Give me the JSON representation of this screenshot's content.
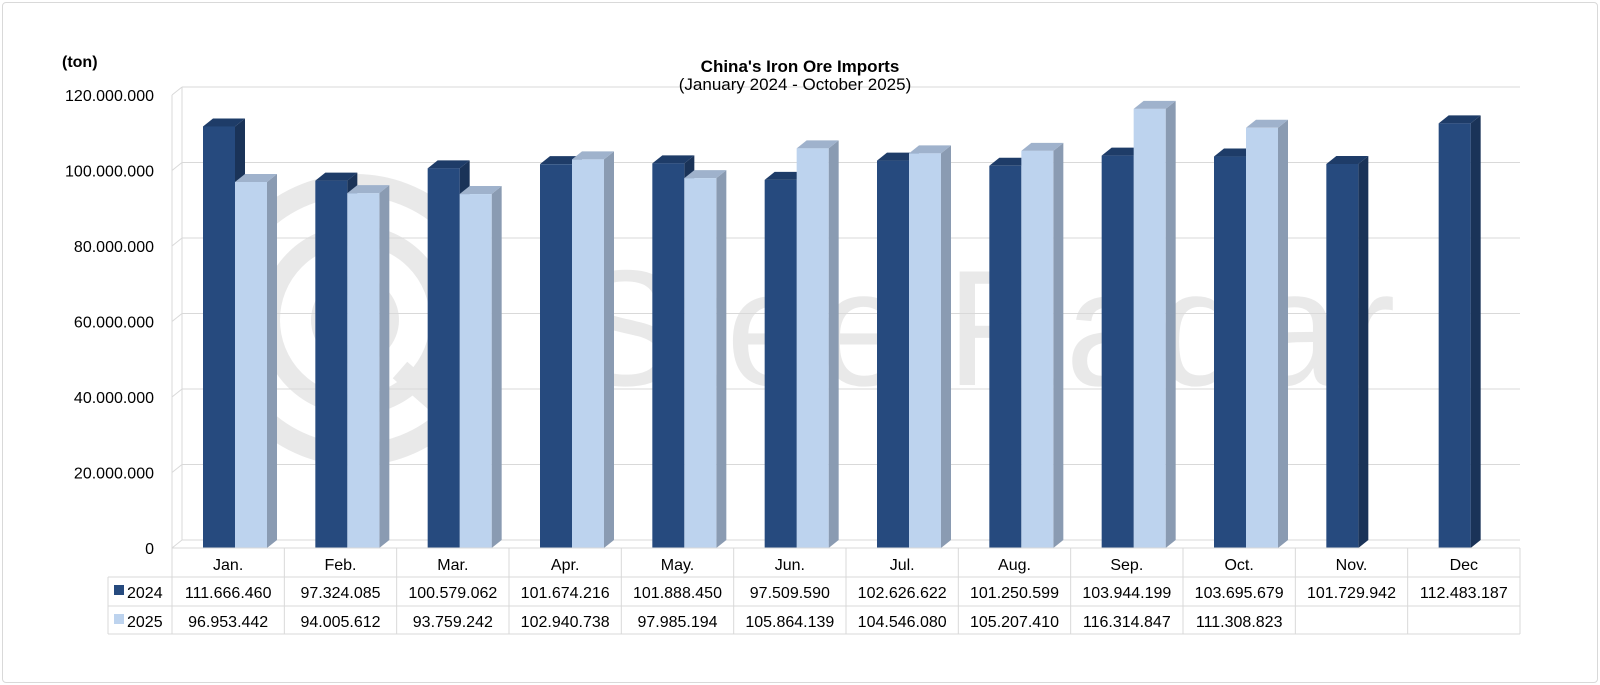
{
  "chart_data": {
    "type": "bar",
    "title": "China's Iron Ore Imports",
    "subtitle": "(January 2024 - October 2025)",
    "ylabel": "(ton)",
    "ylim": [
      0,
      120000000
    ],
    "yticks": [
      "0",
      "20.000.000",
      "40.000.000",
      "60.000.000",
      "80.000.000",
      "100.000.000",
      "120.000.000"
    ],
    "grid": true,
    "style": "3d-clustered-column with data table",
    "categories": [
      "Jan.",
      "Feb.",
      "Mar.",
      "Apr.",
      "May.",
      "Jun.",
      "Jul.",
      "Aug.",
      "Sep.",
      "Oct.",
      "Nov.",
      "Dec"
    ],
    "series": [
      {
        "name": "2024",
        "color": "#264a7e",
        "values": [
          111666460,
          97324085,
          100579062,
          101674216,
          101888450,
          97509590,
          102626622,
          101250599,
          103944199,
          103695679,
          101729942,
          112483187
        ],
        "labels": [
          "111.666.460",
          "97.324.085",
          "100.579.062",
          "101.674.216",
          "101.888.450",
          "97.509.590",
          "102.626.622",
          "101.250.599",
          "103.944.199",
          "103.695.679",
          "101.729.942",
          "112.483.187"
        ]
      },
      {
        "name": "2025",
        "color": "#bdd3ee",
        "values": [
          96953442,
          94005612,
          93759242,
          102940738,
          97985194,
          105864139,
          104546080,
          105207410,
          116314847,
          111308823,
          null,
          null
        ],
        "labels": [
          "96.953.442",
          "94.005.612",
          "93.759.242",
          "102.940.738",
          "97.985.194",
          "105.864.139",
          "104.546.080",
          "105.207.410",
          "116.314.847",
          "111.308.823",
          "",
          ""
        ]
      }
    ]
  },
  "watermark": "SteelRadar"
}
